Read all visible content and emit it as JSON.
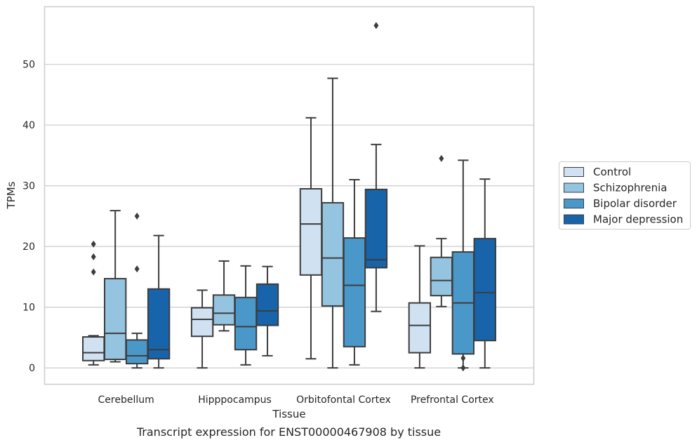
{
  "caption": "Transcript expression for ENST00000467908 by tissue",
  "chart_data": {
    "type": "box",
    "xlabel": "Tissue",
    "ylabel": "TPMs",
    "ylim": [
      -2.7,
      59.5
    ],
    "yticks": [
      0,
      10,
      20,
      30,
      40,
      50
    ],
    "grid": "horizontal",
    "legend_position": "right",
    "categories": [
      "Cerebellum",
      "Hipppocampus",
      "Orbitofontal Cortex",
      "Prefrontal Cortex"
    ],
    "series": [
      {
        "name": "Control",
        "color": "#d0e1f2",
        "boxes": [
          {
            "whisker_low": 0.5,
            "q1": 1.2,
            "median": 2.5,
            "q3": 5.1,
            "whisker_high": 5.3,
            "outliers": [
              15.8,
              18.3,
              20.4
            ]
          },
          {
            "whisker_low": 0.0,
            "q1": 5.2,
            "median": 8.0,
            "q3": 9.9,
            "whisker_high": 12.8,
            "outliers": []
          },
          {
            "whisker_low": 1.5,
            "q1": 15.3,
            "median": 23.7,
            "q3": 29.5,
            "whisker_high": 41.2,
            "outliers": []
          },
          {
            "whisker_low": 0.0,
            "q1": 2.5,
            "median": 7.0,
            "q3": 10.7,
            "whisker_high": 20.1,
            "outliers": []
          }
        ]
      },
      {
        "name": "Schizophrenia",
        "color": "#94c4df",
        "boxes": [
          {
            "whisker_low": 1.0,
            "q1": 1.4,
            "median": 5.7,
            "q3": 14.7,
            "whisker_high": 25.9,
            "outliers": []
          },
          {
            "whisker_low": 6.1,
            "q1": 7.1,
            "median": 9.0,
            "q3": 12.0,
            "whisker_high": 17.6,
            "outliers": []
          },
          {
            "whisker_low": 0.0,
            "q1": 10.2,
            "median": 18.1,
            "q3": 27.2,
            "whisker_high": 47.7,
            "outliers": []
          },
          {
            "whisker_low": 10.1,
            "q1": 11.9,
            "median": 14.4,
            "q3": 18.2,
            "whisker_high": 21.3,
            "outliers": [
              34.5
            ]
          }
        ]
      },
      {
        "name": "Bipolar disorder",
        "color": "#4a98c9",
        "boxes": [
          {
            "whisker_low": 0.0,
            "q1": 0.7,
            "median": 2.0,
            "q3": 4.6,
            "whisker_high": 5.7,
            "outliers": [
              16.3,
              25.0
            ]
          },
          {
            "whisker_low": 0.5,
            "q1": 3.0,
            "median": 6.8,
            "q3": 11.6,
            "whisker_high": 16.8,
            "outliers": []
          },
          {
            "whisker_low": 0.5,
            "q1": 3.5,
            "median": 13.6,
            "q3": 21.4,
            "whisker_high": 31.0,
            "outliers": []
          },
          {
            "whisker_low": 0.0,
            "q1": 2.3,
            "median": 10.7,
            "q3": 19.1,
            "whisker_high": 34.2,
            "outliers": [
              0.0,
              1.6
            ]
          }
        ]
      },
      {
        "name": "Major depression",
        "color": "#1764ab",
        "boxes": [
          {
            "whisker_low": 0.0,
            "q1": 1.5,
            "median": 3.0,
            "q3": 13.0,
            "whisker_high": 21.8,
            "outliers": []
          },
          {
            "whisker_low": 2.0,
            "q1": 7.0,
            "median": 9.4,
            "q3": 13.8,
            "whisker_high": 16.7,
            "outliers": []
          },
          {
            "whisker_low": 9.3,
            "q1": 16.5,
            "median": 17.8,
            "q3": 29.4,
            "whisker_high": 36.8,
            "outliers": [
              56.4
            ]
          },
          {
            "whisker_low": 0.0,
            "q1": 4.5,
            "median": 12.4,
            "q3": 21.3,
            "whisker_high": 31.1,
            "outliers": []
          }
        ]
      }
    ]
  }
}
